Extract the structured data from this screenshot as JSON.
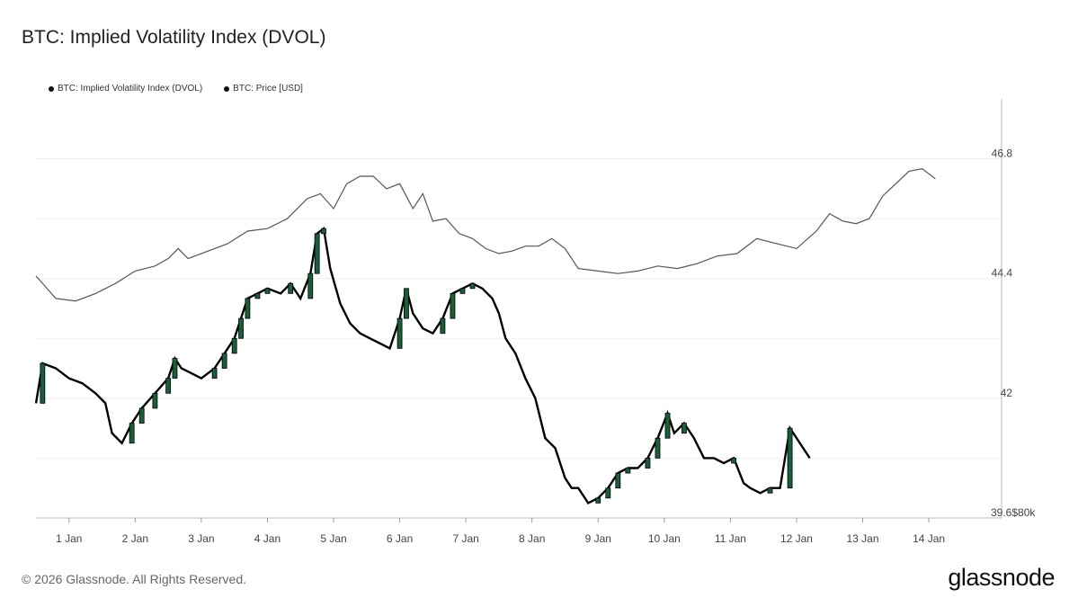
{
  "title": "BTC: Implied Volatility Index (DVOL)",
  "legend": [
    {
      "label": "BTC: Implied Volatility Index (DVOL)",
      "color": "#000000"
    },
    {
      "label": "BTC: Price [USD]",
      "color": "#000000"
    }
  ],
  "footer": "© 2026 Glassnode. All Rights Reserved.",
  "logo": "glassnode",
  "chart_data": {
    "type": "line",
    "x_ticks": [
      "1 Jan",
      "2 Jan",
      "3 Jan",
      "4 Jan",
      "5 Jan",
      "6 Jan",
      "7 Jan",
      "8 Jan",
      "9 Jan",
      "10 Jan",
      "11 Jan",
      "12 Jan",
      "13 Jan",
      "14 Jan"
    ],
    "y_ticks_dvol": [
      "46.8",
      "44.4",
      "42",
      "39.6"
    ],
    "y_tick_price_label": "$80k",
    "ylim_dvol": [
      39.6,
      48.0
    ],
    "x_range_days": [
      0.0,
      14.6
    ],
    "series": [
      {
        "name": "BTC: Implied Volatility Index (DVOL)",
        "style": "candlestick",
        "color": "#000000",
        "up_color": "#1b5e3a",
        "points": [
          [
            0.0,
            41.9
          ],
          [
            0.1,
            42.7
          ],
          [
            0.3,
            42.6
          ],
          [
            0.5,
            42.4
          ],
          [
            0.7,
            42.3
          ],
          [
            0.9,
            42.1
          ],
          [
            1.05,
            41.9
          ],
          [
            1.15,
            41.3
          ],
          [
            1.3,
            41.1
          ],
          [
            1.45,
            41.5
          ],
          [
            1.6,
            41.8
          ],
          [
            1.8,
            42.1
          ],
          [
            2.0,
            42.4
          ],
          [
            2.1,
            42.8
          ],
          [
            2.2,
            42.6
          ],
          [
            2.35,
            42.5
          ],
          [
            2.5,
            42.4
          ],
          [
            2.7,
            42.6
          ],
          [
            2.85,
            42.9
          ],
          [
            3.0,
            43.2
          ],
          [
            3.1,
            43.6
          ],
          [
            3.2,
            44.0
          ],
          [
            3.35,
            44.1
          ],
          [
            3.5,
            44.2
          ],
          [
            3.7,
            44.1
          ],
          [
            3.85,
            44.3
          ],
          [
            4.0,
            44.0
          ],
          [
            4.15,
            44.5
          ],
          [
            4.25,
            45.3
          ],
          [
            4.35,
            45.4
          ],
          [
            4.45,
            44.6
          ],
          [
            4.6,
            43.9
          ],
          [
            4.75,
            43.5
          ],
          [
            4.9,
            43.3
          ],
          [
            5.05,
            43.2
          ],
          [
            5.2,
            43.1
          ],
          [
            5.35,
            43.0
          ],
          [
            5.5,
            43.6
          ],
          [
            5.6,
            44.2
          ],
          [
            5.7,
            43.7
          ],
          [
            5.85,
            43.4
          ],
          [
            6.0,
            43.3
          ],
          [
            6.15,
            43.6
          ],
          [
            6.3,
            44.1
          ],
          [
            6.45,
            44.2
          ],
          [
            6.6,
            44.3
          ],
          [
            6.75,
            44.2
          ],
          [
            6.9,
            44.0
          ],
          [
            7.0,
            43.7
          ],
          [
            7.1,
            43.2
          ],
          [
            7.25,
            42.9
          ],
          [
            7.4,
            42.4
          ],
          [
            7.55,
            42.0
          ],
          [
            7.7,
            41.2
          ],
          [
            7.85,
            41.0
          ],
          [
            8.0,
            40.4
          ],
          [
            8.1,
            40.2
          ],
          [
            8.2,
            40.2
          ],
          [
            8.35,
            39.9
          ],
          [
            8.5,
            40.0
          ],
          [
            8.65,
            40.2
          ],
          [
            8.8,
            40.5
          ],
          [
            8.95,
            40.6
          ],
          [
            9.1,
            40.6
          ],
          [
            9.25,
            40.8
          ],
          [
            9.4,
            41.2
          ],
          [
            9.55,
            41.7
          ],
          [
            9.65,
            41.3
          ],
          [
            9.8,
            41.5
          ],
          [
            9.95,
            41.2
          ],
          [
            10.1,
            40.8
          ],
          [
            10.25,
            40.8
          ],
          [
            10.4,
            40.7
          ],
          [
            10.55,
            40.8
          ],
          [
            10.7,
            40.3
          ],
          [
            10.8,
            40.2
          ],
          [
            10.95,
            40.1
          ],
          [
            11.1,
            40.2
          ],
          [
            11.25,
            40.2
          ],
          [
            11.4,
            41.4
          ],
          [
            11.5,
            41.2
          ],
          [
            11.6,
            41.0
          ],
          [
            11.7,
            40.8
          ]
        ]
      },
      {
        "name": "BTC: Price [USD]",
        "style": "line",
        "color": "#555555",
        "points": [
          [
            0.0,
            44.45
          ],
          [
            0.3,
            44.0
          ],
          [
            0.6,
            43.95
          ],
          [
            0.9,
            44.1
          ],
          [
            1.2,
            44.3
          ],
          [
            1.5,
            44.55
          ],
          [
            1.8,
            44.65
          ],
          [
            2.0,
            44.8
          ],
          [
            2.15,
            45.0
          ],
          [
            2.3,
            44.8
          ],
          [
            2.6,
            44.95
          ],
          [
            2.9,
            45.1
          ],
          [
            3.2,
            45.35
          ],
          [
            3.5,
            45.4
          ],
          [
            3.8,
            45.6
          ],
          [
            4.1,
            46.0
          ],
          [
            4.3,
            46.1
          ],
          [
            4.5,
            45.8
          ],
          [
            4.7,
            46.3
          ],
          [
            4.9,
            46.45
          ],
          [
            5.1,
            46.45
          ],
          [
            5.3,
            46.2
          ],
          [
            5.5,
            46.3
          ],
          [
            5.7,
            45.8
          ],
          [
            5.85,
            46.1
          ],
          [
            6.0,
            45.55
          ],
          [
            6.2,
            45.6
          ],
          [
            6.4,
            45.3
          ],
          [
            6.6,
            45.2
          ],
          [
            6.8,
            45.0
          ],
          [
            7.0,
            44.9
          ],
          [
            7.2,
            44.95
          ],
          [
            7.4,
            45.05
          ],
          [
            7.6,
            45.05
          ],
          [
            7.8,
            45.2
          ],
          [
            8.0,
            45.0
          ],
          [
            8.2,
            44.6
          ],
          [
            8.5,
            44.55
          ],
          [
            8.8,
            44.5
          ],
          [
            9.1,
            44.55
          ],
          [
            9.4,
            44.65
          ],
          [
            9.7,
            44.6
          ],
          [
            10.0,
            44.7
          ],
          [
            10.3,
            44.85
          ],
          [
            10.6,
            44.9
          ],
          [
            10.9,
            45.2
          ],
          [
            11.2,
            45.1
          ],
          [
            11.5,
            45.0
          ],
          [
            11.8,
            45.35
          ],
          [
            12.0,
            45.7
          ],
          [
            12.2,
            45.55
          ],
          [
            12.4,
            45.5
          ],
          [
            12.6,
            45.6
          ],
          [
            12.8,
            46.05
          ],
          [
            13.0,
            46.3
          ],
          [
            13.2,
            46.55
          ],
          [
            13.4,
            46.6
          ],
          [
            13.6,
            46.4
          ]
        ]
      }
    ],
    "grid": true,
    "legend_position": "top-left"
  }
}
